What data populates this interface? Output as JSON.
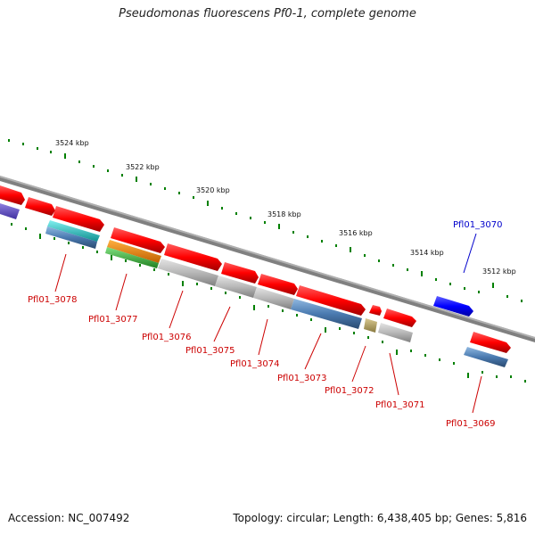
{
  "header": {
    "title": "Pseudomonas fluorescens Pf0-1, complete genome"
  },
  "footer": {
    "accession": "Accession: NC_007492",
    "summary": "Topology: circular; Length: 6,438,405 bp; Genes: 5,816"
  },
  "map": {
    "kbp_labels": [
      "3524 kbp",
      "3522 kbp",
      "3520 kbp",
      "3518 kbp",
      "3516 kbp",
      "3514 kbp",
      "3512 kbp"
    ],
    "gene_labels": [
      {
        "name": "Pfl01_3078",
        "color": "#cc0000"
      },
      {
        "name": "Pfl01_3077",
        "color": "#cc0000"
      },
      {
        "name": "Pfl01_3076",
        "color": "#cc0000"
      },
      {
        "name": "Pfl01_3075",
        "color": "#cc0000"
      },
      {
        "name": "Pfl01_3074",
        "color": "#cc0000"
      },
      {
        "name": "Pfl01_3073",
        "color": "#cc0000"
      },
      {
        "name": "Pfl01_3072",
        "color": "#cc0000"
      },
      {
        "name": "Pfl01_3071",
        "color": "#cc0000"
      },
      {
        "name": "Pfl01_3069",
        "color": "#cc0000"
      },
      {
        "name": "Pfl01_3070",
        "color": "#0000cc"
      }
    ],
    "colors": {
      "backbone": "#808080",
      "tick_green": "#008000",
      "gene_red": "#ff0000",
      "gene_blue": "#0000ff",
      "cds_steel": "#4a7ab0",
      "cds_gray": "#b0b0b0",
      "cds_cyan": "#22c8c8",
      "cds_orange": "#f08000",
      "cds_green": "#40c040",
      "cds_olive": "#b8a860",
      "cds_purple": "#6a50c0"
    }
  }
}
